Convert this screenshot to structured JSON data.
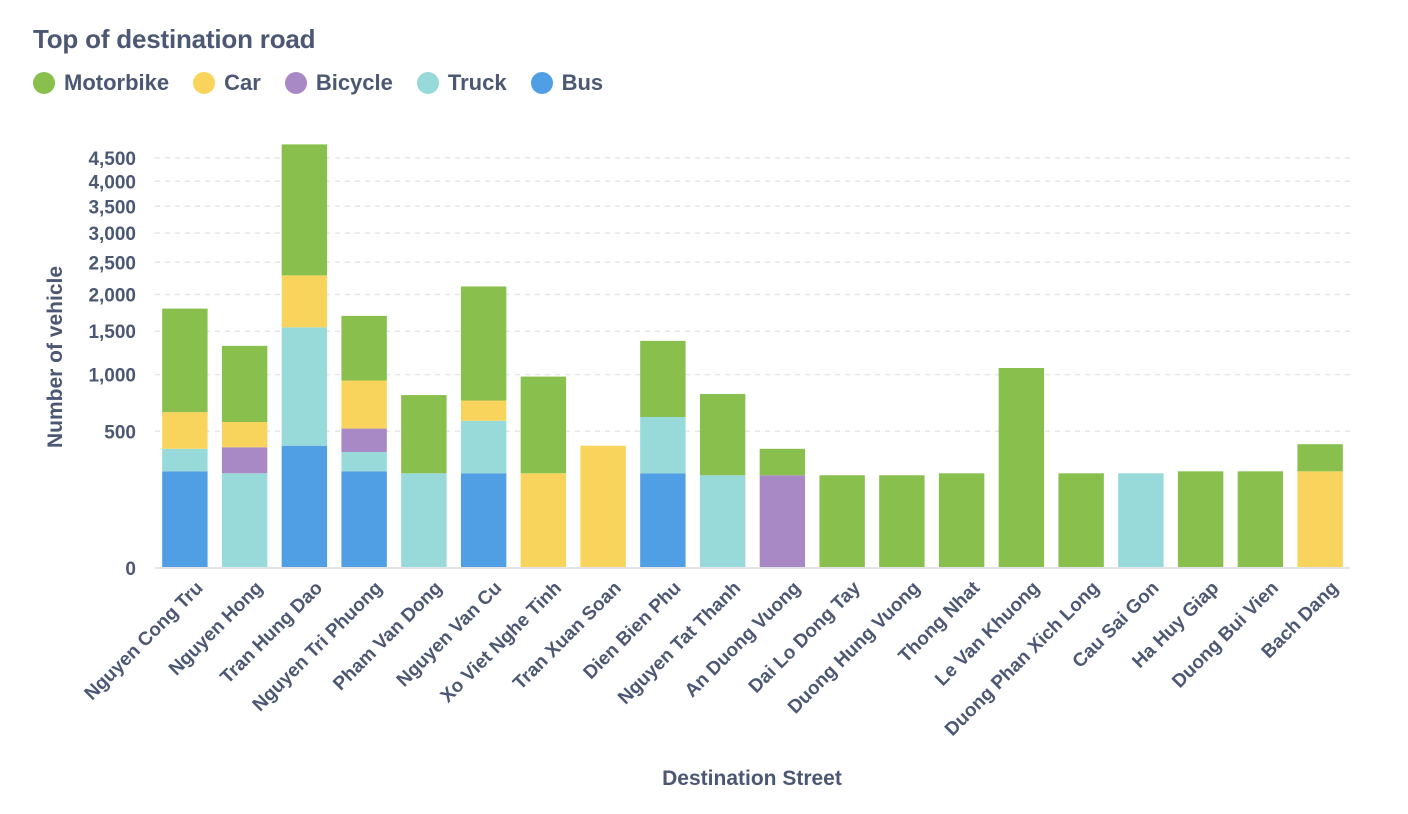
{
  "chart_data": {
    "type": "bar",
    "stacked": true,
    "title": "Top of destination road",
    "xlabel": "Destination Street",
    "ylabel": "Number of vehicle",
    "y_scale": "pow",
    "ylim": [
      0,
      4900
    ],
    "grid": true,
    "legend_position": "top-left",
    "yticks": [
      {
        "value": 0,
        "label": "0"
      },
      {
        "value": 500,
        "label": "500"
      },
      {
        "value": 1000,
        "label": "1,000"
      },
      {
        "value": 1500,
        "label": "1,500"
      },
      {
        "value": 2000,
        "label": "2,000"
      },
      {
        "value": 2500,
        "label": "2,500"
      },
      {
        "value": 3000,
        "label": "3,000"
      },
      {
        "value": 3500,
        "label": "3,500"
      },
      {
        "value": 4000,
        "label": "4,000"
      },
      {
        "value": 4500,
        "label": "4,500"
      }
    ],
    "categories": [
      "Nguyen Cong Tru",
      "Nguyen Hong",
      "Tran Hung Dao",
      "Nguyen Tri Phuong",
      "Pham Van Dong",
      "Nguyen Van Cu",
      "Xo Viet Nghe Tinh",
      "Tran Xuan Soan",
      "Dien Bien Phu",
      "Nguyen Tat Thanh",
      "An Duong Vuong",
      "Dai Lo Dong Tay",
      "Duong Hung Vuong",
      "Thong Nhat",
      "Le Van Khuong",
      "Duong Phan Xich Long",
      "Cau Sai Gon",
      "Ha Huy Giap",
      "Duong Bui Vien",
      "Bach Dang"
    ],
    "series": [
      {
        "name": "Bus",
        "color": "#509ee3",
        "values": [
          250,
          0,
          400,
          250,
          0,
          240,
          0,
          0,
          240,
          0,
          0,
          0,
          0,
          0,
          0,
          0,
          0,
          0,
          0,
          0
        ]
      },
      {
        "name": "Truck",
        "color": "#98d9d9",
        "values": [
          130,
          240,
          1150,
          110,
          240,
          340,
          0,
          0,
          370,
          230,
          0,
          0,
          0,
          0,
          0,
          0,
          240,
          0,
          0,
          0
        ]
      },
      {
        "name": "Bicycle",
        "color": "#a989c5",
        "values": [
          0,
          150,
          0,
          160,
          0,
          0,
          0,
          0,
          0,
          0,
          230,
          0,
          0,
          0,
          0,
          0,
          0,
          0,
          0,
          0
        ]
      },
      {
        "name": "Car",
        "color": "#f9d45c",
        "values": [
          270,
          180,
          740,
          420,
          0,
          170,
          240,
          400,
          0,
          0,
          0,
          0,
          0,
          0,
          0,
          0,
          0,
          0,
          0,
          250
        ]
      },
      {
        "name": "Motorbike",
        "color": "#88bf4d",
        "values": [
          1150,
          750,
          2510,
          760,
          560,
          1370,
          740,
          0,
          770,
          580,
          150,
          230,
          230,
          240,
          1070,
          240,
          0,
          250,
          250,
          160
        ]
      }
    ]
  },
  "legend": {
    "items": [
      {
        "label": "Motorbike",
        "color": "#88bf4d"
      },
      {
        "label": "Car",
        "color": "#f9d45c"
      },
      {
        "label": "Bicycle",
        "color": "#a989c5"
      },
      {
        "label": "Truck",
        "color": "#98d9d9"
      },
      {
        "label": "Bus",
        "color": "#509ee3"
      }
    ]
  }
}
